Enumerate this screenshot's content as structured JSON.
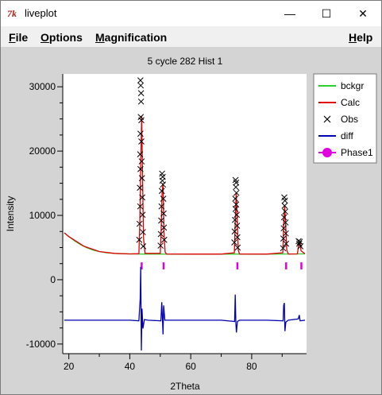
{
  "window": {
    "title": "liveplot",
    "app_icon_glyph": "7k",
    "controls": {
      "minimize": "—",
      "maximize": "☐",
      "close": "✕"
    }
  },
  "menu": {
    "file": {
      "first": "F",
      "rest": "ile"
    },
    "options": {
      "first": "O",
      "rest": "ptions"
    },
    "magnification": {
      "first": "M",
      "rest": "agnification"
    },
    "help": {
      "first": "H",
      "rest": "elp"
    }
  },
  "colors": {
    "bckgr": "#2bd02b",
    "calc": "#e00000",
    "obs": "#000000",
    "diff": "#0000b4",
    "phase1": "#e000e0",
    "plot_bg": "#ffffff",
    "frame_bg": "#d4d4d4"
  },
  "chart_data": {
    "type": "line",
    "title": "5 cycle 282 Hist 1",
    "xlabel": "2Theta",
    "ylabel": "Intensity",
    "xlim": [
      18,
      98
    ],
    "ylim": [
      -11500,
      32000
    ],
    "xticks": [
      20,
      40,
      60,
      80
    ],
    "yticks": [
      -10000,
      0,
      10000,
      20000,
      30000
    ],
    "legend": {
      "placement": "top-right",
      "entries": [
        "bckgr",
        "Calc",
        "Obs",
        "diff",
        "Phase1"
      ]
    },
    "series": [
      {
        "name": "bckgr",
        "x": [
          18.5,
          20,
          22,
          24,
          26,
          28,
          30,
          32,
          34,
          36,
          38,
          40,
          45,
          50,
          55,
          60,
          65,
          70,
          75,
          80,
          85,
          90,
          95,
          97.5
        ],
        "y": [
          7300,
          6700,
          6000,
          5400,
          4950,
          4600,
          4380,
          4220,
          4120,
          4060,
          4030,
          4010,
          3990,
          3980,
          3980,
          3980,
          3980,
          3980,
          3980,
          3990,
          3990,
          4000,
          4010,
          4020
        ]
      },
      {
        "name": "Calc",
        "x": [
          18.5,
          20,
          25,
          30,
          35,
          40,
          43,
          43.3,
          43.6,
          43.9,
          44.2,
          44.5,
          45,
          50,
          50.3,
          50.6,
          50.9,
          51.2,
          51.6,
          52,
          60,
          70,
          74.3,
          74.6,
          74.9,
          75.2,
          75.6,
          76,
          85,
          90.2,
          90.5,
          90.8,
          91.1,
          91.5,
          92,
          95,
          95.4,
          95.8,
          96.2,
          97.5
        ],
        "y": [
          7300,
          6700,
          5200,
          4380,
          4090,
          4010,
          4050,
          9000,
          18000,
          25500,
          16000,
          6500,
          4100,
          4100,
          8000,
          13500,
          15000,
          7500,
          4300,
          4000,
          3980,
          3990,
          4200,
          9000,
          13500,
          10000,
          4600,
          4000,
          3990,
          4200,
          8500,
          11500,
          9000,
          4600,
          4000,
          4010,
          5400,
          5800,
          4500,
          4020
        ]
      },
      {
        "name": "Obs",
        "points": [
          [
            43.5,
            31000
          ],
          [
            43.6,
            30200
          ],
          [
            43.7,
            29000
          ],
          [
            43.7,
            27700
          ],
          [
            43.6,
            25300
          ],
          [
            43.8,
            24800
          ],
          [
            43.5,
            22700
          ],
          [
            43.8,
            21500
          ],
          [
            43.4,
            19500
          ],
          [
            43.9,
            18400
          ],
          [
            43.5,
            17200
          ],
          [
            44.0,
            15800
          ],
          [
            43.3,
            14300
          ],
          [
            44.1,
            12800
          ],
          [
            43.4,
            11400
          ],
          [
            44.2,
            10100
          ],
          [
            43.2,
            8700
          ],
          [
            44.3,
            7400
          ],
          [
            43.1,
            6200
          ],
          [
            44.4,
            5200
          ],
          [
            50.6,
            16500
          ],
          [
            50.8,
            16000
          ],
          [
            50.7,
            15400
          ],
          [
            50.9,
            14800
          ],
          [
            50.5,
            13800
          ],
          [
            51.0,
            12600
          ],
          [
            50.4,
            11400
          ],
          [
            51.1,
            10300
          ],
          [
            50.3,
            9200
          ],
          [
            51.2,
            8100
          ],
          [
            50.2,
            7100
          ],
          [
            51.3,
            6200
          ],
          [
            50.1,
            5300
          ],
          [
            74.7,
            15500
          ],
          [
            74.9,
            15100
          ],
          [
            74.8,
            14400
          ],
          [
            75.0,
            13500
          ],
          [
            74.6,
            12600
          ],
          [
            74.9,
            11700
          ],
          [
            74.7,
            11000
          ],
          [
            75.1,
            10100
          ],
          [
            74.5,
            9300
          ],
          [
            75.2,
            8400
          ],
          [
            74.4,
            7500
          ],
          [
            75.3,
            6600
          ],
          [
            74.3,
            5800
          ],
          [
            75.4,
            5000
          ],
          [
            90.7,
            12800
          ],
          [
            90.9,
            12300
          ],
          [
            90.8,
            11500
          ],
          [
            91.0,
            10600
          ],
          [
            90.6,
            9700
          ],
          [
            91.1,
            8900
          ],
          [
            90.5,
            8000
          ],
          [
            91.2,
            7200
          ],
          [
            90.4,
            6400
          ],
          [
            91.3,
            5600
          ],
          [
            90.3,
            4900
          ],
          [
            95.4,
            6000
          ],
          [
            95.8,
            5900
          ],
          [
            95.6,
            5600
          ],
          [
            96.0,
            5200
          ]
        ]
      },
      {
        "name": "diff",
        "x": [
          18.5,
          25,
          30,
          35,
          40,
          43.0,
          43.4,
          43.6,
          43.8,
          44.0,
          44.3,
          44.8,
          46,
          50.2,
          50.5,
          50.7,
          50.9,
          51.1,
          51.5,
          53,
          60,
          70,
          74.4,
          74.6,
          74.8,
          75.0,
          75.3,
          76,
          85,
          90.3,
          90.5,
          90.7,
          90.9,
          91.2,
          92,
          95.3,
          95.6,
          95.9,
          97.5
        ],
        "y": [
          -6300,
          -6300,
          -6300,
          -6300,
          -6300,
          -6400,
          -3000,
          2000,
          -11000,
          -4500,
          -7600,
          -6200,
          -6300,
          -6400,
          -3500,
          -6000,
          -8500,
          -4000,
          -6300,
          -6300,
          -6300,
          -6300,
          -6500,
          -2300,
          -6800,
          -8200,
          -6500,
          -6300,
          -6300,
          -6400,
          -4000,
          -3600,
          -8000,
          -6600,
          -6300,
          -6100,
          -5500,
          -6400,
          -6300
        ]
      },
      {
        "name": "Phase1",
        "reflections": [
          43.9,
          51.1,
          75.3,
          91.3,
          96.3
        ]
      }
    ]
  }
}
